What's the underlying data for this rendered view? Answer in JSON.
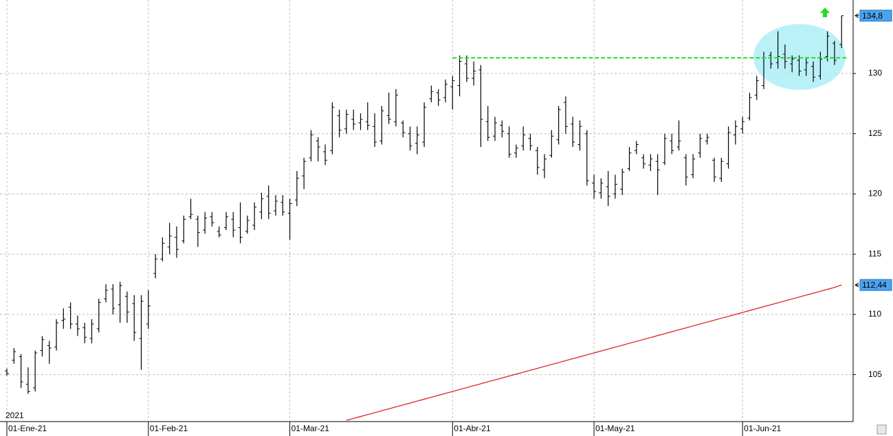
{
  "chart_data": {
    "type": "ohlc",
    "year_label": "2021",
    "ylim": [
      101.1,
      136.1
    ],
    "yticks": [
      105,
      110,
      115,
      120,
      125,
      130
    ],
    "grid": true,
    "xticks": [
      {
        "value": 0,
        "label": "01-Ene-21"
      },
      {
        "value": 20,
        "label": "01-Feb-21"
      },
      {
        "value": 40,
        "label": "01-Mar-21"
      },
      {
        "value": 63,
        "label": "01-Abr-21"
      },
      {
        "value": 83,
        "label": "01-May-21"
      },
      {
        "value": 104,
        "label": "01-Jun-21"
      }
    ],
    "color": "#000000",
    "open": [
      105.3,
      106.2,
      106.5,
      104.2,
      103.9,
      107.0,
      107.4,
      107.3,
      109.5,
      110.6,
      109.2,
      108.9,
      108.0,
      108.8,
      111.3,
      112.1,
      110.8,
      111.5,
      110.9,
      108.0,
      109.2,
      113.4,
      114.6,
      115.6,
      116.4,
      116.1,
      118.1,
      117.9,
      117.0,
      118.1,
      116.9,
      117.2,
      117.9,
      117.2,
      116.9,
      117.4,
      118.5,
      119.8,
      118.6,
      119.3,
      118.4,
      119.5,
      121.5,
      123.0,
      124.4,
      123.5,
      123.6,
      126.5,
      125.4,
      126.2,
      125.9,
      126.0,
      125.6,
      124.4,
      126.5,
      126.0,
      125.9,
      125.0,
      124.2,
      124.3,
      127.9,
      128.4,
      128.0,
      128.9,
      129.0,
      130.8,
      129.6,
      130.3,
      126.0,
      124.8,
      125.7,
      125.0,
      123.4,
      124.0,
      124.6,
      123.6,
      122.0,
      123.2,
      124.5,
      127.6,
      125.8,
      124.1,
      125.0,
      120.9,
      120.1,
      120.6,
      120.0,
      120.4,
      122.1,
      123.6,
      123.0,
      122.4,
      122.7,
      122.6,
      124.4,
      123.9,
      123.0,
      121.6,
      123.4,
      124.4,
      122.8,
      121.3,
      122.5,
      124.9,
      125.4,
      126.3,
      128.2,
      129.0,
      131.5,
      130.9,
      131.6,
      130.8,
      131.1,
      130.3,
      130.6,
      129.8,
      131.4,
      132.5,
      132.4
    ],
    "high": [
      105.5,
      107.2,
      106.7,
      105.6,
      107.0,
      108.2,
      107.8,
      109.6,
      110.5,
      111.0,
      109.9,
      109.3,
      109.6,
      111.3,
      112.5,
      112.5,
      112.7,
      111.9,
      111.6,
      111.6,
      112.0,
      115.0,
      116.4,
      117.6,
      117.3,
      118.2,
      119.6,
      118.2,
      118.5,
      118.5,
      117.3,
      118.5,
      118.5,
      119.3,
      118.2,
      119.3,
      120.1,
      120.7,
      119.9,
      119.9,
      119.6,
      121.9,
      123.0,
      125.3,
      124.7,
      124.1,
      127.6,
      127.0,
      127.0,
      127.0,
      126.7,
      127.6,
      126.7,
      127.3,
      128.4,
      128.7,
      126.1,
      125.6,
      125.6,
      127.6,
      129.0,
      128.7,
      129.5,
      129.8,
      131.5,
      131.5,
      131.0,
      130.7,
      127.3,
      126.4,
      126.1,
      125.6,
      124.1,
      125.6,
      125.0,
      123.9,
      123.3,
      125.3,
      127.3,
      128.1,
      126.4,
      126.1,
      125.3,
      121.6,
      121.3,
      121.9,
      121.6,
      122.1,
      123.9,
      124.4,
      123.3,
      123.3,
      123.3,
      125.0,
      125.0,
      126.1,
      123.3,
      123.3,
      125.0,
      125.0,
      123.0,
      123.0,
      125.6,
      126.1,
      126.4,
      128.4,
      129.8,
      131.8,
      131.8,
      133.5,
      132.4,
      131.5,
      131.5,
      131.3,
      131.0,
      131.8,
      133.5,
      132.7,
      134.8
    ],
    "low": [
      104.9,
      105.9,
      103.9,
      103.4,
      103.6,
      106.5,
      105.9,
      107.0,
      108.8,
      108.8,
      108.2,
      107.6,
      107.6,
      108.5,
      111.0,
      110.0,
      109.3,
      109.3,
      107.8,
      105.4,
      108.8,
      113.0,
      114.4,
      115.0,
      114.7,
      115.9,
      117.9,
      115.6,
      116.7,
      117.3,
      116.4,
      117.0,
      116.4,
      115.9,
      116.7,
      117.0,
      117.9,
      117.9,
      118.2,
      118.2,
      116.2,
      119.0,
      120.4,
      122.7,
      122.7,
      122.4,
      123.3,
      124.7,
      125.0,
      125.3,
      125.3,
      125.3,
      123.9,
      124.1,
      125.8,
      125.6,
      124.7,
      123.6,
      123.3,
      123.9,
      127.6,
      127.3,
      127.6,
      127.0,
      128.1,
      129.3,
      129.0,
      123.9,
      124.4,
      124.4,
      124.7,
      123.0,
      123.0,
      123.6,
      123.6,
      121.6,
      121.3,
      123.0,
      124.1,
      125.0,
      123.9,
      123.6,
      120.7,
      119.6,
      119.6,
      119.0,
      119.6,
      119.9,
      121.9,
      123.3,
      122.1,
      121.9,
      119.9,
      122.4,
      123.3,
      123.6,
      120.7,
      121.3,
      123.0,
      124.1,
      121.0,
      121.0,
      122.1,
      124.1,
      125.0,
      126.1,
      127.8,
      128.7,
      130.4,
      130.4,
      130.4,
      130.1,
      129.8,
      129.8,
      129.3,
      129.5,
      131.0,
      130.7,
      132.1
    ],
    "close": [
      105.1,
      106.9,
      104.4,
      103.6,
      106.8,
      107.9,
      107.2,
      109.3,
      109.6,
      109.2,
      108.8,
      108.1,
      109.2,
      111.0,
      112.0,
      110.5,
      112.4,
      110.2,
      108.5,
      111.1,
      110.7,
      114.6,
      115.9,
      116.5,
      115.4,
      117.9,
      118.3,
      116.8,
      118.0,
      117.6,
      116.6,
      118.1,
      117.0,
      116.4,
      117.8,
      118.9,
      119.6,
      118.4,
      119.4,
      118.5,
      119.2,
      121.3,
      122.7,
      124.9,
      123.9,
      122.8,
      127.2,
      125.3,
      126.6,
      125.8,
      126.2,
      125.7,
      124.3,
      126.9,
      126.2,
      128.2,
      125.1,
      124.0,
      124.9,
      127.2,
      128.5,
      127.8,
      129.1,
      129.4,
      131.0,
      129.6,
      130.2,
      126.2,
      124.7,
      125.9,
      125.2,
      123.3,
      123.8,
      124.9,
      124.0,
      122.2,
      122.9,
      124.8,
      127.0,
      125.6,
      124.3,
      125.6,
      121.1,
      120.2,
      120.9,
      119.8,
      120.8,
      121.8,
      123.4,
      124.1,
      122.5,
      122.9,
      122.0,
      124.6,
      123.6,
      124.4,
      121.4,
      122.9,
      124.6,
      124.7,
      121.4,
      122.7,
      125.1,
      125.6,
      126.0,
      128.0,
      129.4,
      131.3,
      130.8,
      131.4,
      131.0,
      131.2,
      130.2,
      130.9,
      129.7,
      131.2,
      133.1,
      131.1,
      134.8
    ],
    "moving_average": {
      "color": "#dd1111",
      "values": [
        null,
        null,
        null,
        null,
        null,
        null,
        null,
        null,
        null,
        null,
        null,
        null,
        null,
        null,
        null,
        null,
        null,
        null,
        null,
        null,
        null,
        null,
        null,
        null,
        null,
        null,
        null,
        null,
        null,
        null,
        null,
        null,
        null,
        null,
        null,
        null,
        null,
        null,
        null,
        null,
        null,
        null,
        null,
        null,
        null,
        null,
        null,
        null,
        101.2,
        101.36,
        101.52,
        101.68,
        101.84,
        102.0,
        102.16,
        102.32,
        102.48,
        102.64,
        102.8,
        102.96,
        103.12,
        103.28,
        103.44,
        103.6,
        103.76,
        103.92,
        104.08,
        104.24,
        104.4,
        104.56,
        104.72,
        104.88,
        105.04,
        105.2,
        105.36,
        105.52,
        105.68,
        105.84,
        106.0,
        106.16,
        106.32,
        106.48,
        106.64,
        106.8,
        106.96,
        107.12,
        107.28,
        107.44,
        107.6,
        107.76,
        107.92,
        108.08,
        108.24,
        108.4,
        108.56,
        108.72,
        108.88,
        109.04,
        109.2,
        109.36,
        109.52,
        109.68,
        109.84,
        110.0,
        110.16,
        110.32,
        110.48,
        110.64,
        110.8,
        110.96,
        111.12,
        111.28,
        111.44,
        111.6,
        111.76,
        111.92,
        112.08,
        112.24,
        112.44
      ]
    },
    "resistance": {
      "value": 131.3,
      "color": "#22dd22"
    },
    "price_tags": [
      {
        "value": 134.8,
        "label": "134,8"
      },
      {
        "value": 112.44,
        "label": "112,44"
      }
    ]
  }
}
